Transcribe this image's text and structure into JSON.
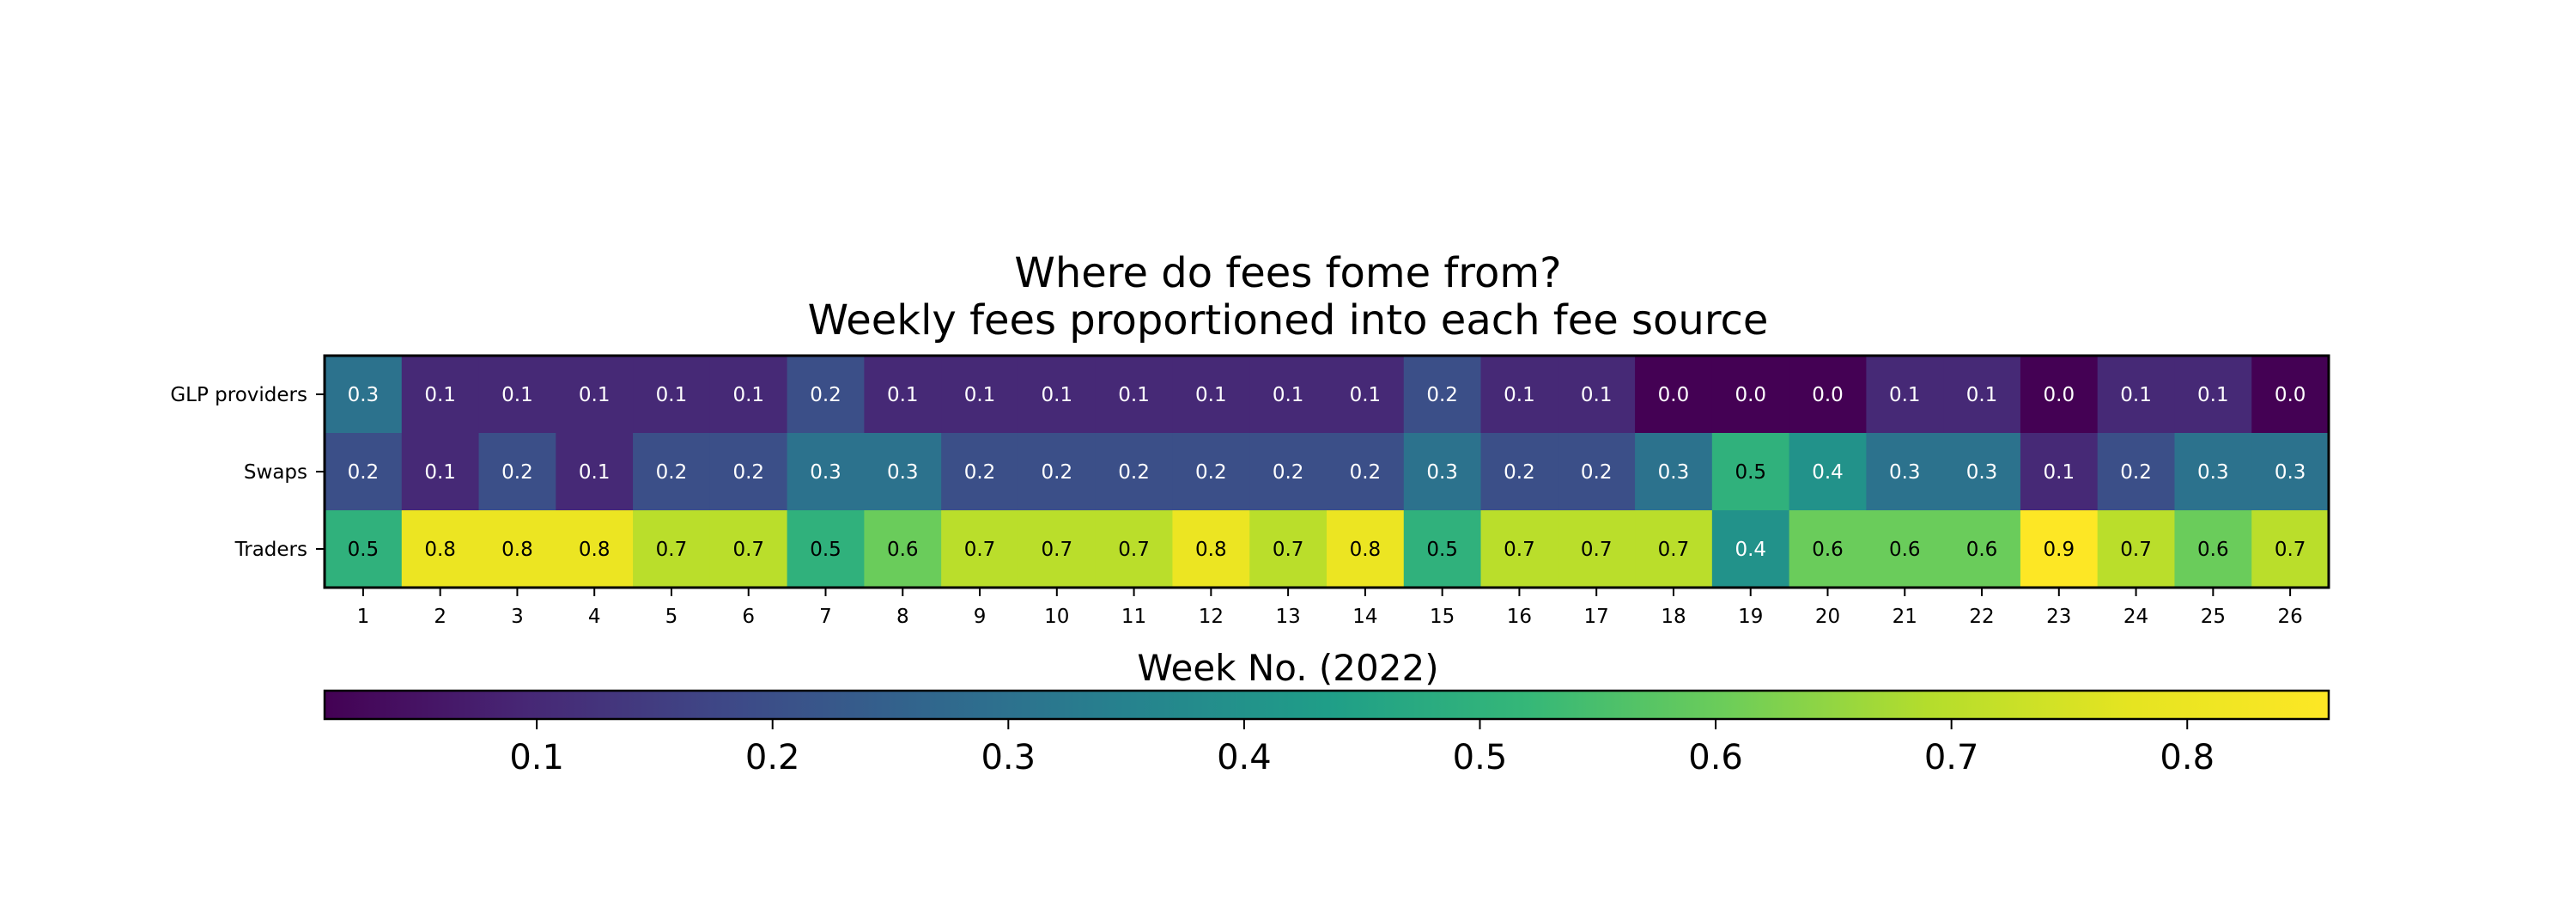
{
  "chart_data": {
    "type": "heatmap",
    "title_line1": "Where do fees fome from?",
    "title_line2": "Weekly fees proportioned into each fee source",
    "xlabel": "Week No. (2022)",
    "ylabel": "",
    "x": [
      "1",
      "2",
      "3",
      "4",
      "5",
      "6",
      "7",
      "8",
      "9",
      "10",
      "11",
      "12",
      "13",
      "14",
      "15",
      "16",
      "17",
      "18",
      "19",
      "20",
      "21",
      "22",
      "23",
      "24",
      "25",
      "26"
    ],
    "y": [
      "GLP providers",
      "Swaps",
      "Traders"
    ],
    "values": [
      [
        0.3,
        0.1,
        0.1,
        0.1,
        0.1,
        0.1,
        0.2,
        0.1,
        0.1,
        0.1,
        0.1,
        0.1,
        0.1,
        0.1,
        0.2,
        0.1,
        0.1,
        0.0,
        0.0,
        0.0,
        0.1,
        0.1,
        0.0,
        0.1,
        0.1,
        0.0
      ],
      [
        0.2,
        0.1,
        0.2,
        0.1,
        0.2,
        0.2,
        0.3,
        0.3,
        0.2,
        0.2,
        0.2,
        0.2,
        0.2,
        0.2,
        0.3,
        0.2,
        0.2,
        0.3,
        0.5,
        0.4,
        0.3,
        0.3,
        0.1,
        0.2,
        0.3,
        0.3
      ],
      [
        0.5,
        0.8,
        0.8,
        0.8,
        0.7,
        0.7,
        0.5,
        0.6,
        0.7,
        0.7,
        0.7,
        0.8,
        0.7,
        0.8,
        0.5,
        0.7,
        0.7,
        0.7,
        0.4,
        0.6,
        0.6,
        0.6,
        0.9,
        0.7,
        0.6,
        0.7
      ]
    ],
    "colormap": "viridis",
    "colorbar": {
      "orientation": "horizontal",
      "range": [
        0.01,
        0.86
      ],
      "ticks": [
        0.1,
        0.2,
        0.3,
        0.4,
        0.5,
        0.6,
        0.7,
        0.8
      ],
      "tick_labels": [
        "0.1",
        "0.2",
        "0.3",
        "0.4",
        "0.5",
        "0.6",
        "0.7",
        "0.8"
      ]
    },
    "legend": "none",
    "grid": false
  }
}
